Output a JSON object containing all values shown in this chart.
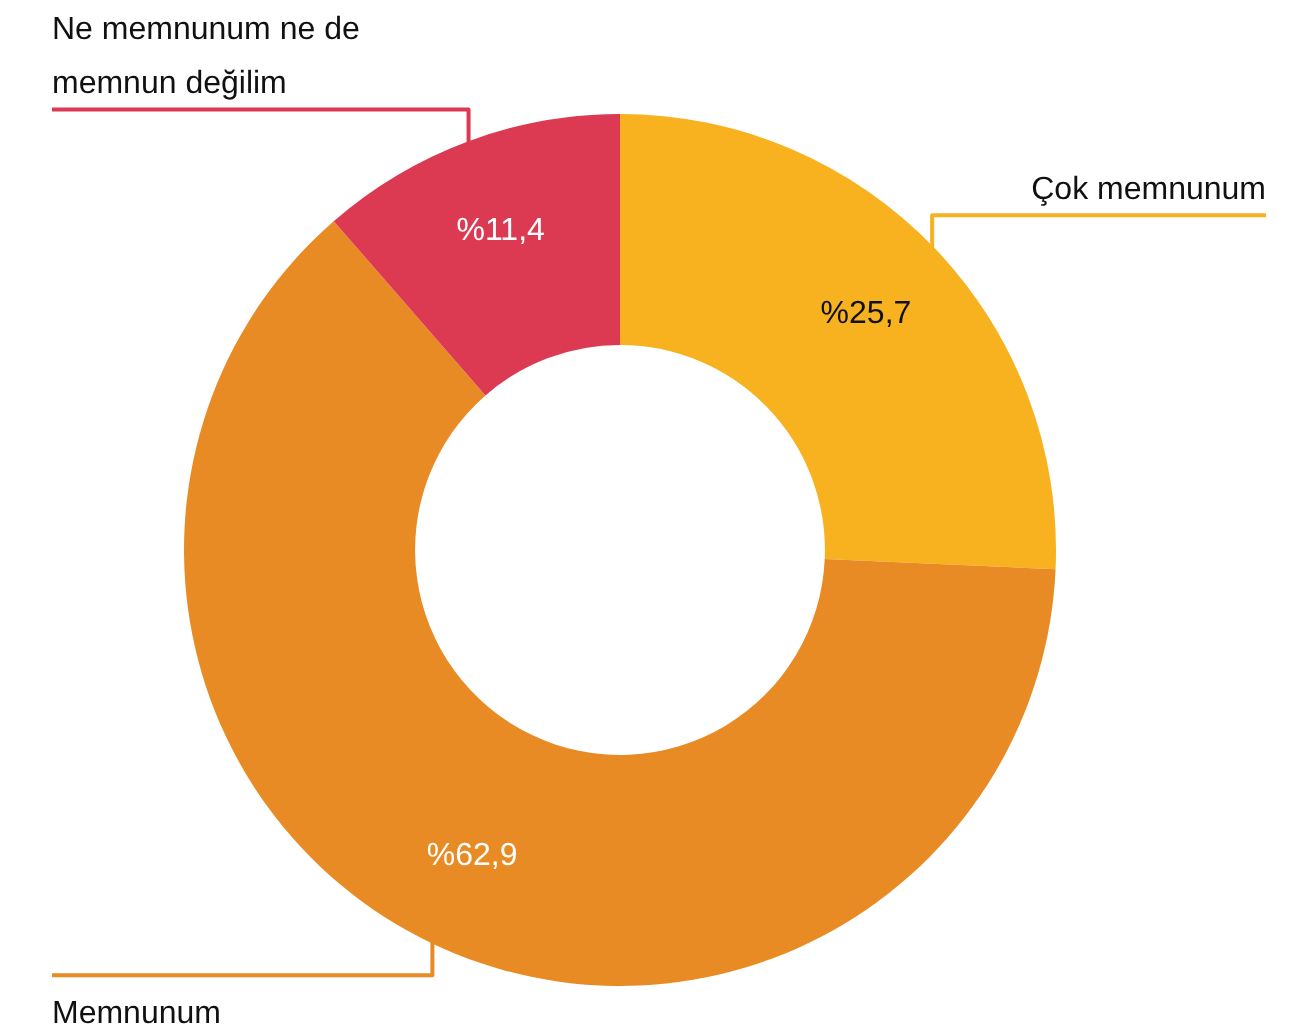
{
  "chart_data": {
    "type": "donut",
    "categories": [
      "Çok memnunum",
      "Memnunum",
      "Ne memnunum ne de memnun değilim"
    ],
    "values": [
      25.7,
      62.9,
      11.4
    ],
    "colors": [
      "#f9b21f",
      "#e98b24",
      "#dc3953"
    ],
    "value_labels": [
      "%25,7",
      "%62,9",
      "%11,4"
    ]
  }
}
